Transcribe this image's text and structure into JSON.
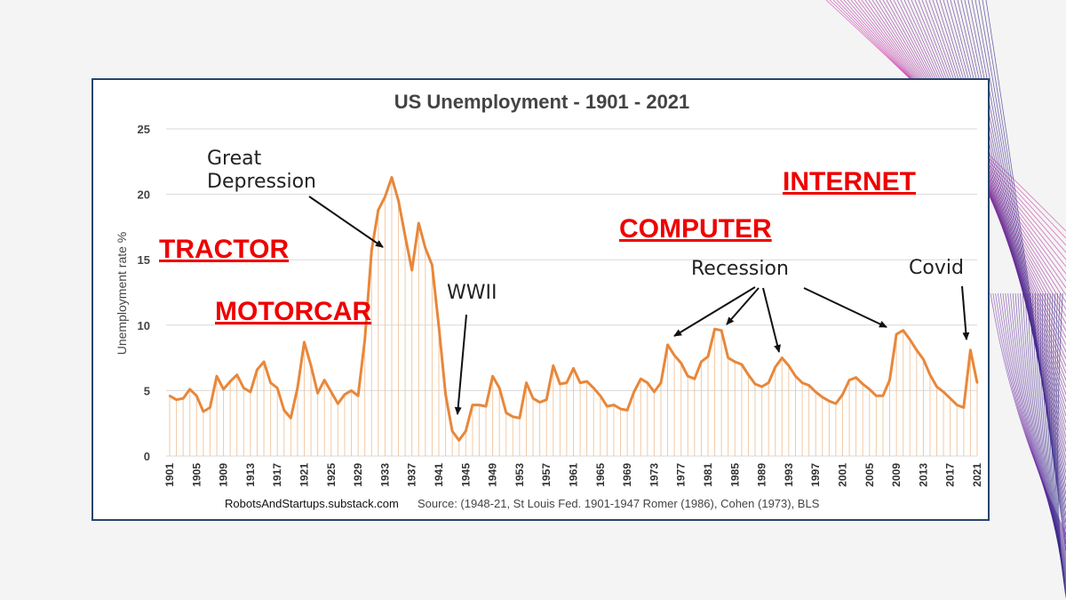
{
  "colors": {
    "line": "#e8873a",
    "drop": "#f2c9a4",
    "label_red": "#ee0000",
    "frame": "#27456b",
    "grid": "#d9d9d9"
  },
  "footer": {
    "credit": "RobotsAndStartups.substack.com",
    "source": "Source: (1948-21, St Louis Fed. 1901-1947 Romer (1986), Cohen (1973), BLS"
  },
  "chart_data": {
    "type": "line",
    "title": "US Unemployment - 1901 - 2021",
    "ylabel": "Unemployment rate %",
    "xlabel": "",
    "ylim": [
      0,
      25
    ],
    "yticks": [
      0,
      5,
      10,
      15,
      20,
      25
    ],
    "xticks": [
      1901,
      1905,
      1909,
      1913,
      1917,
      1921,
      1925,
      1929,
      1933,
      1937,
      1941,
      1945,
      1949,
      1953,
      1957,
      1961,
      1965,
      1969,
      1973,
      1977,
      1981,
      1985,
      1989,
      1993,
      1997,
      2001,
      2005,
      2009,
      2013,
      2017,
      2021
    ],
    "grid": true,
    "x_start": 1901,
    "x_end": 2021,
    "series": [
      {
        "values": [
          4.6,
          4.3,
          4.4,
          5.1,
          4.6,
          3.4,
          3.7,
          6.1,
          5.1,
          5.7,
          6.2,
          5.2,
          4.9,
          6.6,
          7.2,
          5.6,
          5.2,
          3.5,
          2.9,
          5.2,
          8.7,
          6.9,
          4.8,
          5.8,
          4.9,
          4.0,
          4.7,
          5.0,
          4.6,
          8.9,
          15.7,
          18.8,
          19.8,
          21.3,
          19.5,
          16.8,
          14.2,
          17.8,
          15.9,
          14.6,
          9.9,
          4.7,
          1.9,
          1.2,
          1.9,
          3.9,
          3.9,
          3.8,
          6.1,
          5.2,
          3.3,
          3.0,
          2.9,
          5.6,
          4.4,
          4.1,
          4.3,
          6.9,
          5.5,
          5.6,
          6.7,
          5.6,
          5.7,
          5.2,
          4.6,
          3.8,
          3.9,
          3.6,
          3.5,
          4.9,
          5.9,
          5.6,
          4.9,
          5.6,
          8.5,
          7.7,
          7.1,
          6.1,
          5.9,
          7.2,
          7.6,
          9.7,
          9.6,
          7.5,
          7.2,
          7.0,
          6.2,
          5.5,
          5.3,
          5.6,
          6.8,
          7.5,
          6.9,
          6.1,
          5.6,
          5.4,
          4.9,
          4.5,
          4.2,
          4.0,
          4.7,
          5.8,
          6.0,
          5.5,
          5.1,
          4.6,
          4.6,
          5.8,
          9.3,
          9.6,
          8.9,
          8.1,
          7.4,
          6.2,
          5.3,
          4.9,
          4.4,
          3.9,
          3.7,
          8.1,
          5.6
        ]
      }
    ],
    "annotations": {
      "great_depression": [
        "Great",
        "Depression"
      ],
      "wwii": "WWII",
      "recession": "Recession",
      "covid": "Covid",
      "tractor": "TRACTOR",
      "motorcar": "MOTORCAR",
      "computer": "COMPUTER",
      "internet": "INTERNET"
    }
  }
}
